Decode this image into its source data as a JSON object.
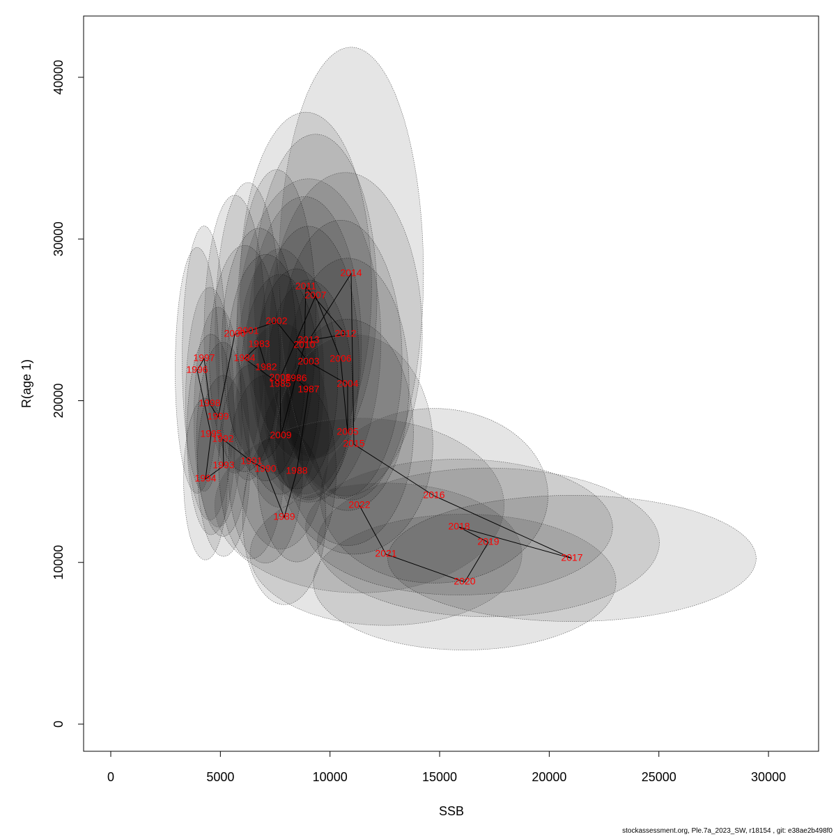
{
  "chart_data": {
    "type": "scatter",
    "xlabel": "SSB",
    "ylabel": "R(age 1)",
    "footer": "stockassessment.org, Ple.7a_2023_SW, r18154 , git: e38ae2b498f0",
    "labels": [
      "1982",
      "1983",
      "1984",
      "1985",
      "1986",
      "1987",
      "1988",
      "1989",
      "1990",
      "1991",
      "1992",
      "1993",
      "1994",
      "1995",
      "1996",
      "1997",
      "1998",
      "1999",
      "2000",
      "2001",
      "2002",
      "2003",
      "2004",
      "2005",
      "2006",
      "2007",
      "2008",
      "2009",
      "2010",
      "2011",
      "2012",
      "2013",
      "2014",
      "2015",
      "2016",
      "2017",
      "2018",
      "2019",
      "2020",
      "2021",
      "2022"
    ],
    "x": [
      7086,
      6768,
      6101,
      7722,
      8453,
      9024,
      8484,
      7912,
      7054,
      6419,
      5116,
      5148,
      4322,
      4576,
      3940,
      4258,
      4512,
      4894,
      5656,
      6260,
      7563,
      9024,
      10804,
      10804,
      10486,
      9342,
      7722,
      7753,
      8834,
      8897,
      10709,
      9024,
      10963,
      11090,
      14744,
      21036,
      15888,
      17223,
      16142,
      12552,
      11344
    ],
    "series": [
      {
        "color": "#ff0000",
        "values": [
          22045,
          23466,
          22605,
          21012,
          21356,
          20667,
          15629,
          12788,
          15759,
          16232,
          17610,
          15974,
          15156,
          17912,
          21873,
          22605,
          19806,
          18988,
          24112,
          24284,
          24887,
          22390,
          21012,
          18041,
          22562,
          26480,
          21399,
          17825,
          23423,
          27040,
          24112,
          23724,
          27858,
          17309,
          14123,
          10248,
          12185,
          11238,
          8784,
          10506,
          13520
        ]
      }
    ],
    "ellipse_rx": [
      1800,
      1700,
      1600,
      1800,
      1900,
      2000,
      1800,
      1900,
      1700,
      1500,
      1200,
      1200,
      1000,
      1100,
      1000,
      1000,
      1100,
      1100,
      1400,
      1500,
      1800,
      2300,
      2800,
      3000,
      2800,
      2800,
      2000,
      2200,
      2600,
      3000,
      3500,
      3300,
      3300,
      3600,
      5200,
      8400,
      7000,
      7800,
      6900,
      6200,
      6600
    ],
    "ellipse_ry": [
      7000,
      7200,
      7000,
      6800,
      6800,
      6800,
      5600,
      5400,
      5800,
      6000,
      6000,
      5600,
      5000,
      6200,
      7600,
      8200,
      7200,
      6800,
      8600,
      9200,
      9400,
      8400,
      7800,
      7000,
      8600,
      10000,
      8000,
      7000,
      9200,
      10800,
      10000,
      10000,
      14000,
      6800,
      5400,
      3900,
      4200,
      4600,
      4200,
      4400,
      5400
    ],
    "xlim": [
      -1239,
      32285
    ],
    "ylim": [
      -1679,
      43789
    ],
    "xticks": [
      0,
      5000,
      10000,
      15000,
      20000,
      25000,
      30000
    ],
    "yticks": [
      0,
      10000,
      20000,
      30000,
      40000
    ]
  }
}
